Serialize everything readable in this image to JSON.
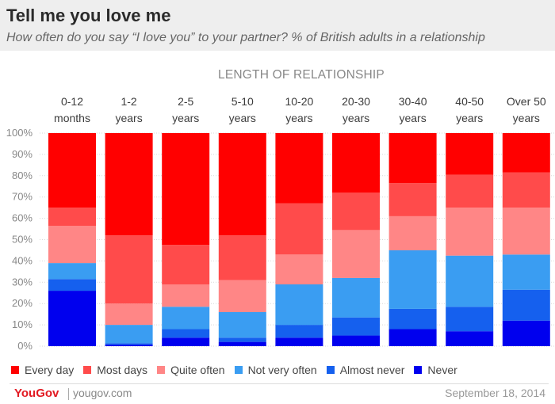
{
  "title": "Tell me you love me",
  "subtitle": "How often do you say “I love you” to your partner? % of British adults in a relationship",
  "footer": {
    "brand": "YouGov",
    "site": "yougov.com",
    "date": "September 18, 2014"
  },
  "colors": {
    "header_bg": "#eeeeee",
    "brand": "#e21a22"
  },
  "chart_data": {
    "type": "bar",
    "stacked": true,
    "xlabel": "LENGTH OF RELATIONSHIP",
    "ylabel": "",
    "ylim": [
      0,
      100
    ],
    "y_ticks": [
      "0%",
      "10%",
      "20%",
      "30%",
      "40%",
      "50%",
      "60%",
      "70%",
      "80%",
      "90%",
      "100%"
    ],
    "grid": true,
    "legend_position": "bottom",
    "categories": [
      [
        "0-12",
        "months"
      ],
      [
        "1-2",
        "years"
      ],
      [
        "2-5",
        "years"
      ],
      [
        "5-10",
        "years"
      ],
      [
        "10-20",
        "years"
      ],
      [
        "20-30",
        "years"
      ],
      [
        "30-40",
        "years"
      ],
      [
        "40-50",
        "years"
      ],
      [
        "Over 50",
        "years"
      ]
    ],
    "series": [
      {
        "name": "Never",
        "color": "#0000ee",
        "values": [
          26,
          0.7,
          4,
          2,
          4,
          5,
          8,
          7,
          12
        ]
      },
      {
        "name": "Almost never",
        "color": "#1560ee",
        "values": [
          5.5,
          0.7,
          4,
          2,
          6,
          8.5,
          9.5,
          11.5,
          14.5
        ]
      },
      {
        "name": "Not very often",
        "color": "#3a9df2",
        "values": [
          7.5,
          8.6,
          10.5,
          12,
          19,
          18.5,
          27.5,
          24,
          16.5
        ]
      },
      {
        "name": "Quite often",
        "color": "#ff8686",
        "values": [
          17.5,
          10,
          10.5,
          15,
          14,
          22.5,
          16,
          22.5,
          22
        ]
      },
      {
        "name": "Most days",
        "color": "#ff4b4b",
        "values": [
          8.5,
          32,
          18.5,
          21,
          24,
          17.5,
          15.5,
          15.5,
          16.5
        ]
      },
      {
        "name": "Every day",
        "color": "#ff0000",
        "values": [
          35,
          48,
          52.5,
          48,
          33,
          28,
          23.5,
          19.5,
          18.5
        ]
      }
    ],
    "legend_order": [
      "Every day",
      "Most days",
      "Quite often",
      "Not very often",
      "Almost never",
      "Never"
    ]
  }
}
